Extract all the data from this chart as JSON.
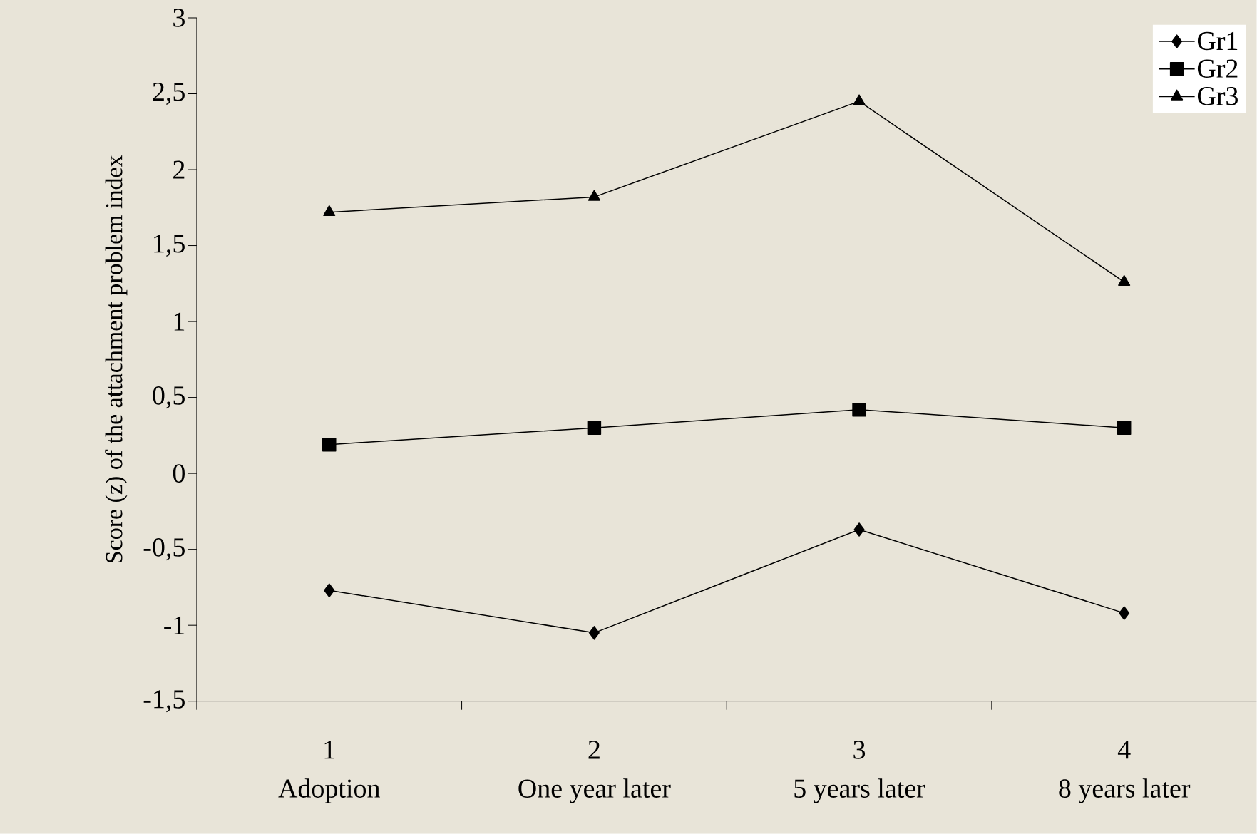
{
  "chart_data": {
    "type": "line",
    "ylabel": "Score (z) of the attachment problem index",
    "categories": [
      "1",
      "2",
      "3",
      "4"
    ],
    "annotations": [
      "Adoption",
      "One year later",
      "5 years later",
      "8 years later"
    ],
    "series": [
      {
        "name": "Gr1",
        "color": "#000000",
        "marker": "diamond",
        "values": [
          -0.77,
          -1.05,
          -0.37,
          -0.92
        ]
      },
      {
        "name": "Gr2",
        "color": "#000000",
        "marker": "square",
        "values": [
          0.19,
          0.3,
          0.42,
          0.3
        ]
      },
      {
        "name": "Gr3",
        "color": "#000000",
        "marker": "triangle",
        "values": [
          1.72,
          1.82,
          2.45,
          1.26
        ]
      }
    ],
    "ylim": [
      -1.5,
      3
    ],
    "yticks": [
      {
        "value": -1.5,
        "label": "-1,5"
      },
      -1,
      {
        "value": -0.5,
        "label": "-0,5"
      },
      0,
      {
        "value": 0.5,
        "label": "0,5"
      },
      1,
      {
        "value": 1.5,
        "label": "1,5"
      },
      2,
      {
        "value": 2.5,
        "label": "2,5"
      },
      3
    ],
    "legend": "top right",
    "line_style": "solid",
    "grid": false
  }
}
